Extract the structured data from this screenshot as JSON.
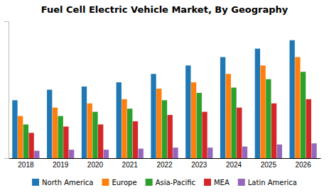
{
  "chart_data": {
    "type": "bar",
    "title": "Fuel Cell Electric Vehicle Market, By Geography",
    "categories": [
      "2018",
      "2019",
      "2020",
      "2021",
      "2022",
      "2023",
      "2024",
      "2025",
      "2026"
    ],
    "series": [
      {
        "name": "North America",
        "values": [
          5.5,
          6.5,
          6.8,
          7.2,
          8.0,
          8.8,
          9.6,
          10.4,
          11.2
        ]
      },
      {
        "name": "Europe",
        "values": [
          4.0,
          4.8,
          5.2,
          5.6,
          6.6,
          7.2,
          8.0,
          8.8,
          9.6
        ]
      },
      {
        "name": "Asia-Pacific",
        "values": [
          3.2,
          4.0,
          4.4,
          4.7,
          5.5,
          6.2,
          6.7,
          7.5,
          8.2
        ]
      },
      {
        "name": "MEA",
        "values": [
          2.4,
          3.0,
          3.2,
          3.5,
          4.1,
          4.4,
          4.8,
          5.2,
          5.6
        ]
      },
      {
        "name": "Latin America",
        "values": [
          0.7,
          0.8,
          0.8,
          0.9,
          1.0,
          1.0,
          1.1,
          1.3,
          1.4
        ]
      }
    ],
    "ylim": [
      0,
      13
    ],
    "grid": false,
    "legend": "bottom",
    "tick_labels": "x"
  }
}
